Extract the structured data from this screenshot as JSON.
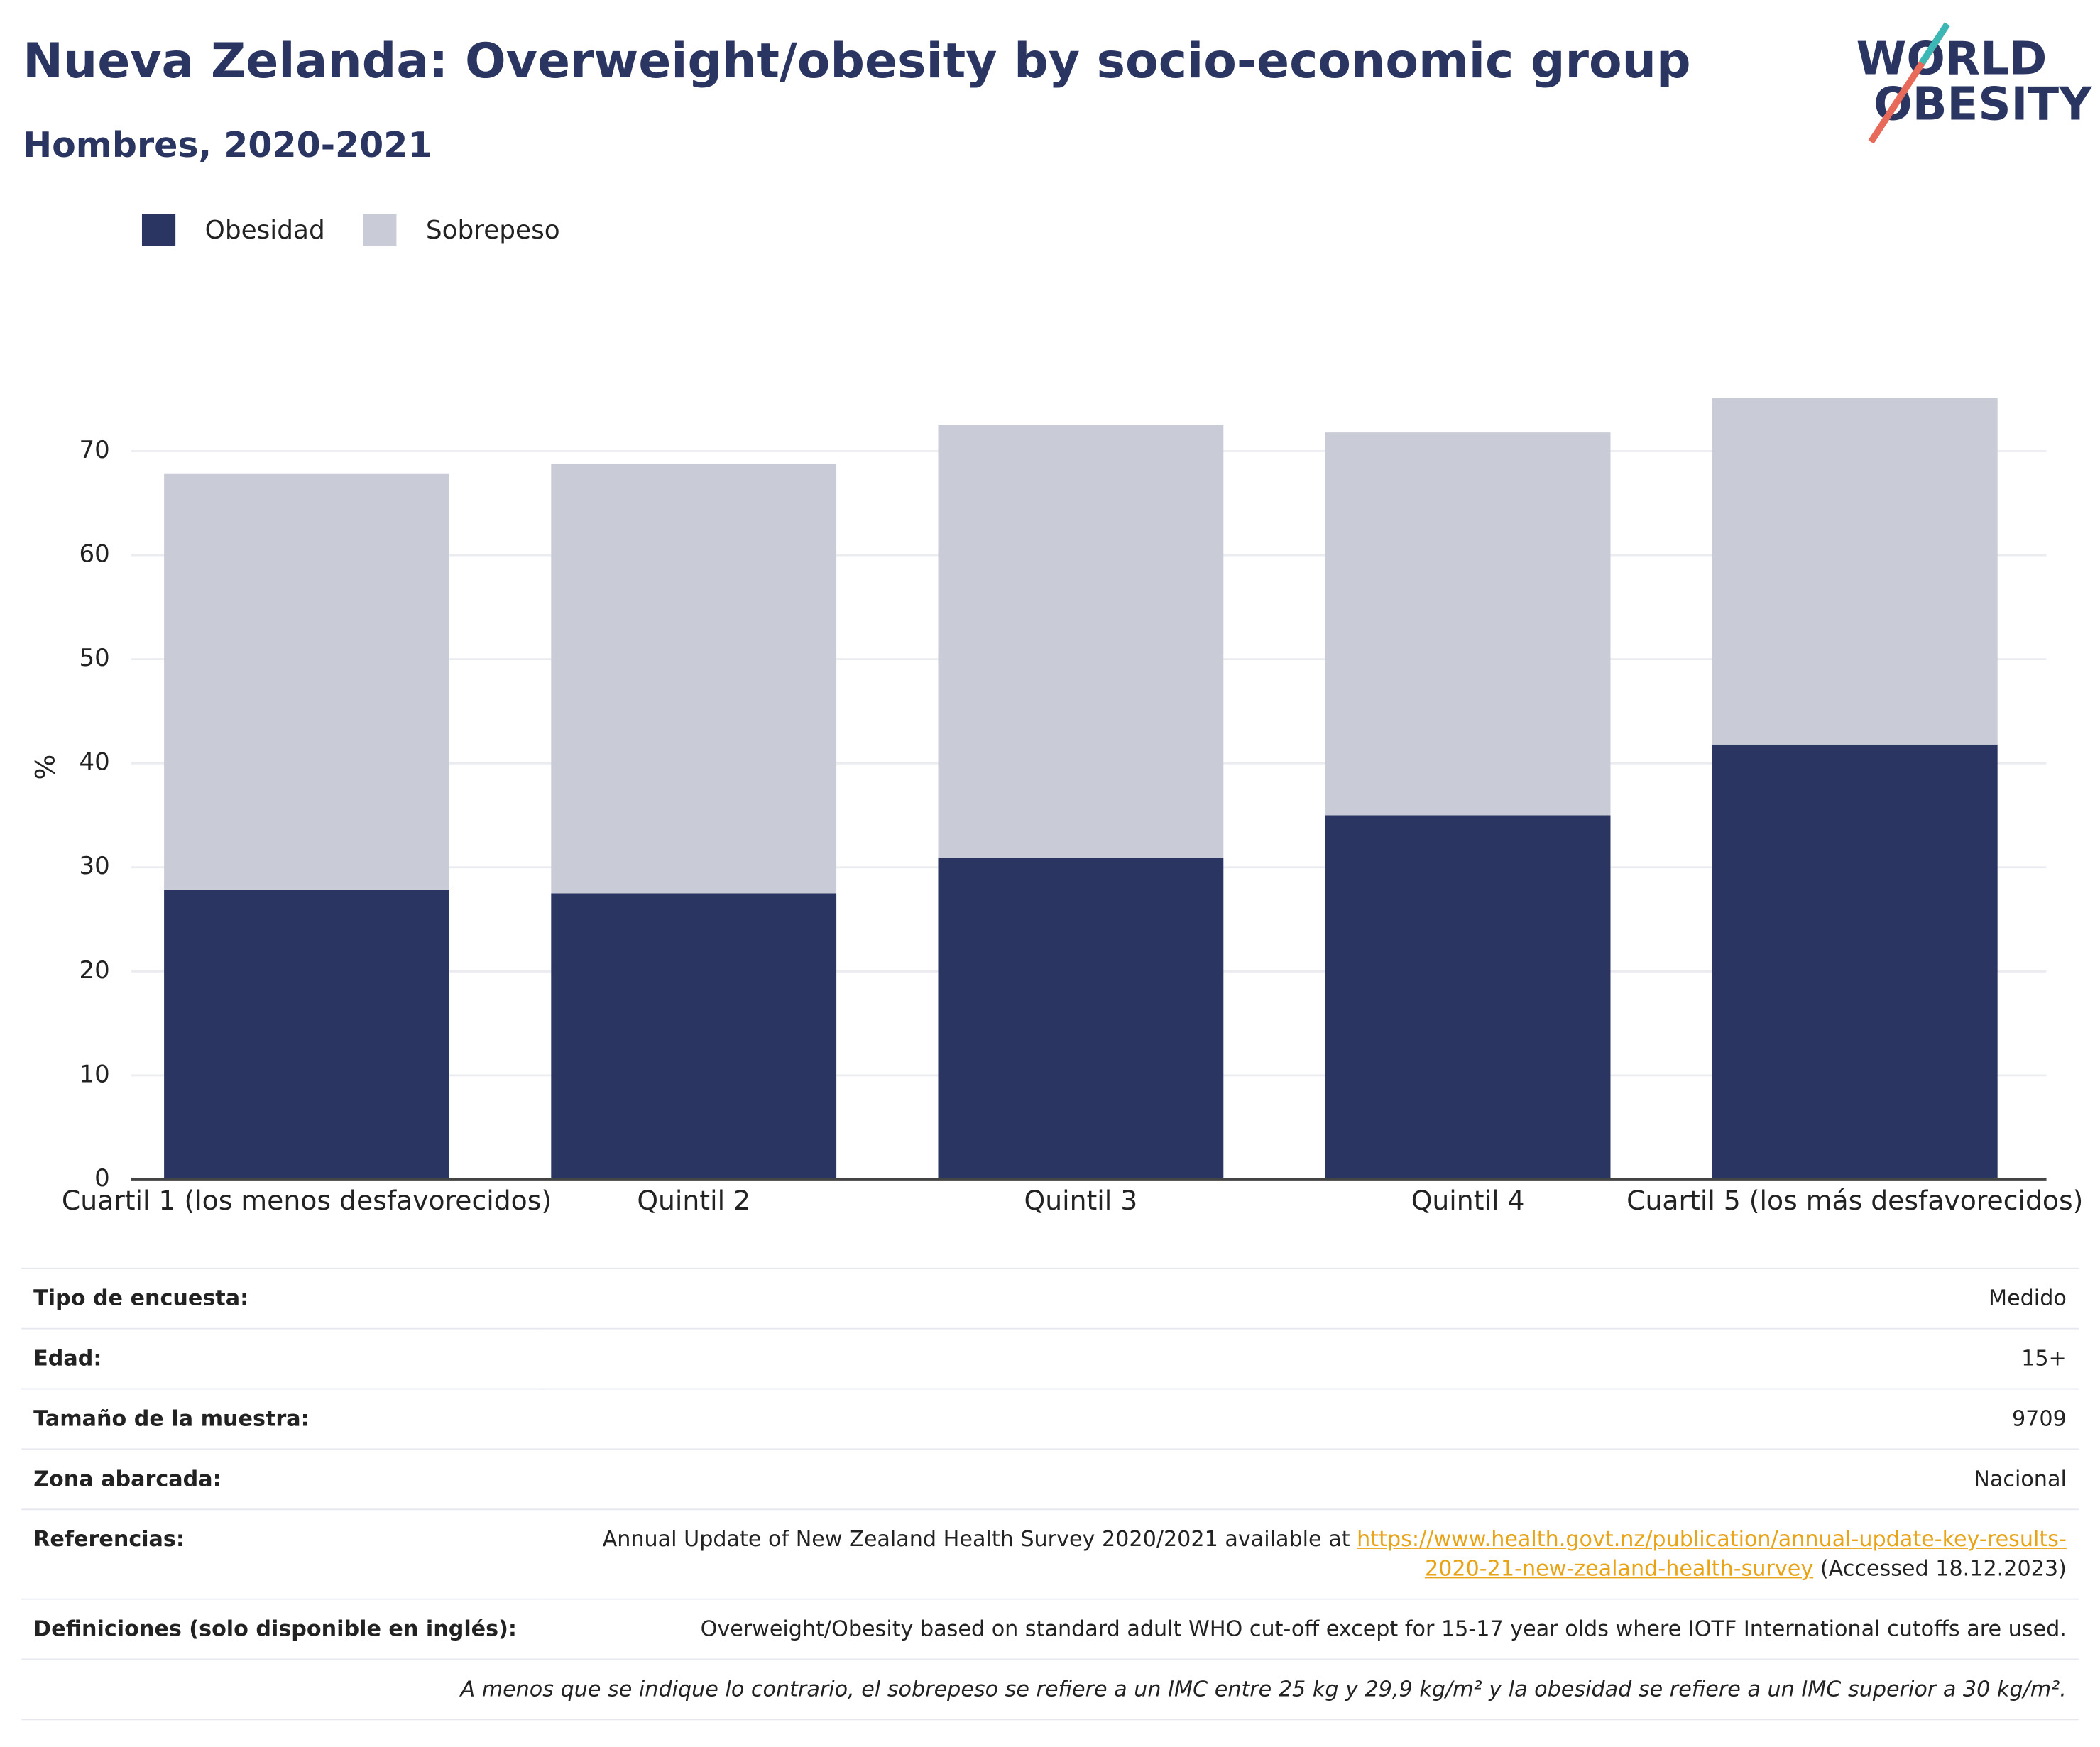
{
  "chart_data": {
    "type": "bar",
    "stacked": true,
    "title": "Nueva Zelanda: Overweight/obesity by socio-economic group",
    "subtitle": "Hombres, 2020-2021",
    "y_label": "%",
    "categories": [
      "Cuartil 1 (los menos desfavorecidos)",
      "Quintil 2",
      "Quintil 3",
      "Quintil 4",
      "Cuartil 5 (los más desfavorecidos)"
    ],
    "series": [
      {
        "name": "Obesidad",
        "color": "#2a3562",
        "values": [
          27.8,
          27.5,
          30.9,
          35.0,
          41.8
        ]
      },
      {
        "name": "Sobrepeso",
        "color": "#c9cbd7",
        "values": [
          40.0,
          41.3,
          41.6,
          36.8,
          33.3
        ]
      }
    ],
    "ylim": [
      0,
      77
    ],
    "yticks": [
      0,
      10,
      20,
      30,
      40,
      50,
      60,
      70
    ],
    "grid": true,
    "legend": "top-left"
  },
  "logo": [
    "WORLD",
    "OBESITY"
  ],
  "table": {
    "rows": [
      {
        "label": "Tipo de encuesta:",
        "value": "Medido"
      },
      {
        "label": "Edad:",
        "value": "15+"
      },
      {
        "label": "Tamaño de la muestra:",
        "value": "9709"
      },
      {
        "label": "Zona abarcada:",
        "value": "Nacional"
      },
      {
        "label": "Referencias:",
        "value": "Annual Update of New Zealand Health Survey 2020/2021 available at",
        "link": "https://www.health.govt.nz/publication/annual-update-key-results-2020-21-new-zealand-health-survey",
        "suffix": "(Accessed 18.12.2023)"
      },
      {
        "label": "Definiciones (solo disponible en inglés):",
        "value": "Overweight/Obesity based on standard adult WHO cut-off except for 15-17 year olds where IOTF International cutoffs are used."
      }
    ],
    "footnote": "A menos que se indique lo contrario, el sobrepeso se refiere a un IMC entre 25 kg y 29,9 kg/m² y la obesidad se refiere a un IMC superior a 30 kg/m²."
  }
}
